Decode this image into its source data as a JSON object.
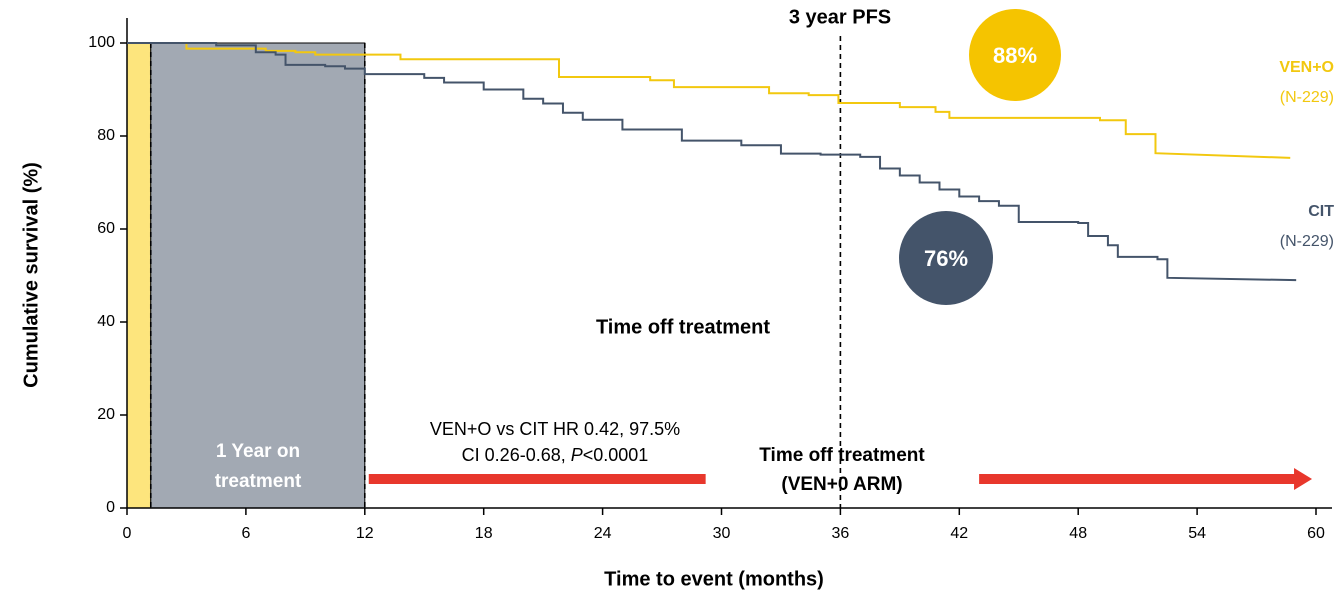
{
  "chart_data": {
    "type": "line",
    "x_label": "Time to event (months)",
    "y_label": "Cumulative survival (%)",
    "xlim": [
      0,
      60
    ],
    "ylim": [
      0,
      100
    ],
    "xticks": [
      0,
      6,
      12,
      18,
      24,
      30,
      36,
      42,
      48,
      54,
      60
    ],
    "yticks": [
      0,
      20,
      40,
      60,
      80,
      100
    ],
    "shaded_regions": [
      {
        "from": 0,
        "to": 1.2,
        "color": "#fde57d"
      },
      {
        "from": 1.2,
        "to": 12,
        "color": "#a2a9b3"
      }
    ],
    "reference_lines": [
      1.2,
      12,
      36
    ],
    "arrows": [
      {
        "from": 12.2,
        "to": 29.2,
        "color": "#e8372c"
      },
      {
        "from": 43,
        "to": 59.8,
        "color": "#e8372c"
      }
    ],
    "series": [
      {
        "name": "VEN+O",
        "subtitle": "(N-229)",
        "color": "#f2c80f",
        "x": [
          0,
          3,
          3,
          7,
          7,
          8.5,
          8.5,
          9.5,
          9.5,
          13.8,
          13.8,
          21.8,
          21.8,
          26.4,
          26.4,
          27.6,
          27.6,
          32.4,
          32.4,
          34.4,
          34.4,
          35.9,
          35.9,
          39,
          39,
          40.8,
          40.8,
          41.5,
          41.5,
          49.1,
          49.1,
          50.4,
          50.4,
          51.9,
          51.9,
          58.7
        ],
        "values": [
          100,
          100,
          98.8,
          98.8,
          98.3,
          98.3,
          98,
          98,
          97.5,
          97.5,
          96.5,
          96.5,
          92.7,
          92.7,
          92,
          92,
          90.5,
          90.5,
          89.2,
          89.2,
          88.8,
          88.8,
          87.1,
          87.1,
          86.2,
          86.2,
          85.2,
          85.2,
          83.9,
          83.9,
          83.4,
          83.4,
          80.4,
          80.4,
          76.3,
          75.3
        ]
      },
      {
        "name": "CIT",
        "subtitle": "(N-229)",
        "color": "#44546a",
        "x": [
          0,
          4.5,
          4.5,
          6.5,
          6.5,
          7.5,
          7.5,
          8,
          8,
          10,
          10,
          11,
          11,
          12,
          12,
          15,
          15,
          16,
          16,
          18,
          18,
          20,
          20,
          21,
          21,
          22,
          22,
          23,
          23,
          25,
          25,
          28,
          28,
          31,
          31,
          33,
          33,
          35,
          35,
          37,
          37,
          38,
          38,
          39,
          39,
          40,
          40,
          41,
          41,
          42,
          42,
          43,
          43,
          44,
          44,
          45,
          45,
          48,
          48,
          48.5,
          48.5,
          49.5,
          49.5,
          50,
          50,
          52,
          52,
          52.5,
          52.5,
          59
        ],
        "values": [
          100,
          100,
          99.5,
          99.5,
          98,
          98,
          97.5,
          97.5,
          95.3,
          95.3,
          95,
          95,
          94.5,
          94.5,
          93.3,
          93.3,
          92.5,
          92.5,
          91.5,
          91.5,
          90,
          90,
          88,
          88,
          87,
          87,
          85,
          85,
          83.5,
          83.5,
          81.4,
          81.4,
          79,
          79,
          78,
          78,
          76.2,
          76.2,
          76,
          76,
          75.5,
          75.5,
          73,
          73,
          71.5,
          71.5,
          70,
          70,
          68.5,
          68.5,
          67,
          67,
          66,
          66,
          65,
          65,
          61.5,
          61.5,
          61.3,
          61.3,
          58.5,
          58.5,
          56.5,
          56.5,
          54,
          54,
          53.5,
          53.5,
          49.5,
          49
        ]
      }
    ],
    "annotations": {
      "pfs": "3 year PFS",
      "ven_rate": "88%",
      "cit_rate": "76%",
      "off_treatment": "Time off treatment",
      "on_treatment": [
        "1 Year on",
        "treatment"
      ],
      "hr_line1": "VEN+O vs CIT HR 0.42, 97.5%",
      "hr_line2": [
        "CI 0.26-0.68,",
        "P",
        "<0.0001"
      ],
      "off_treatment_arm": [
        "Time off treatment",
        "(VEN+0 ARM)"
      ]
    }
  }
}
